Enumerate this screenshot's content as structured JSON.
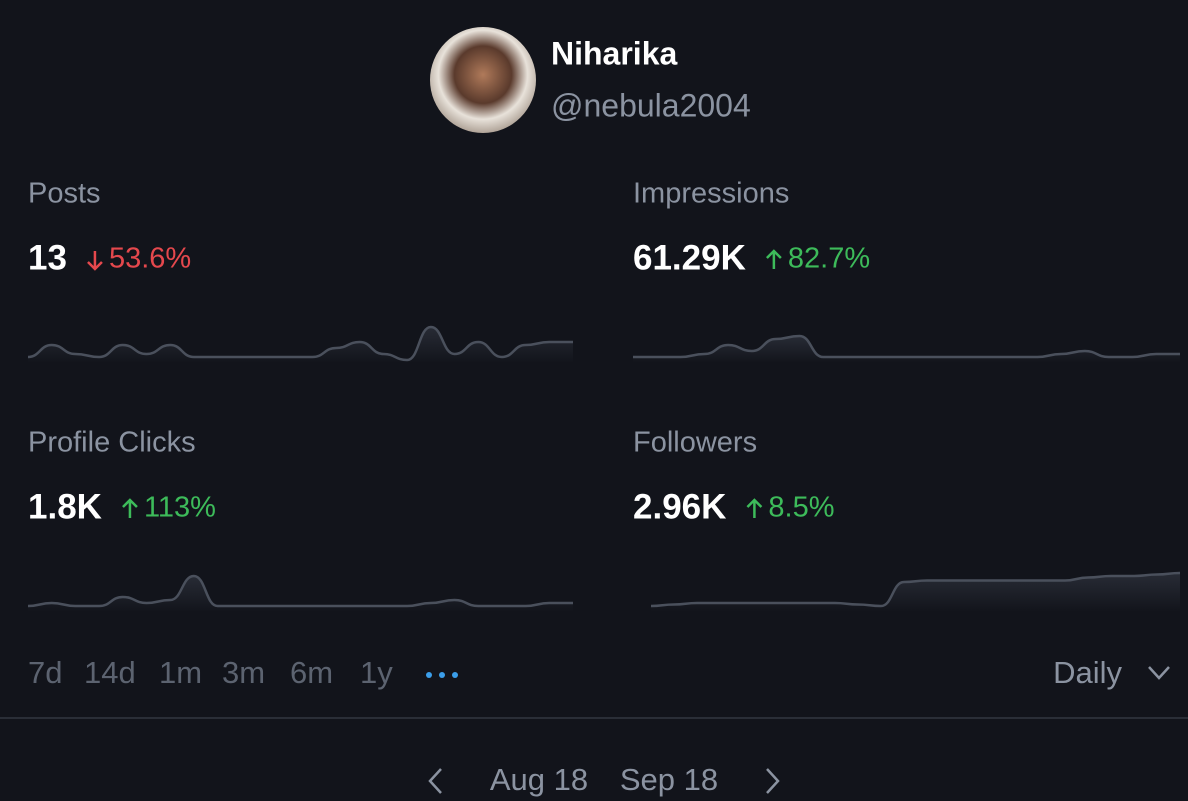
{
  "profile": {
    "name": "Niharika",
    "handle": "@nebula2004"
  },
  "metrics": [
    {
      "label": "Posts",
      "value": "13",
      "change": "53.6%",
      "trend": "down",
      "sparkline": [
        0,
        4,
        1,
        0,
        4,
        1,
        4,
        0,
        0,
        0,
        0,
        0,
        0,
        3,
        5,
        1,
        -1,
        10,
        1,
        5,
        0,
        4,
        5,
        5
      ]
    },
    {
      "label": "Impressions",
      "value": "61.29K",
      "change": "82.7%",
      "trend": "up",
      "sparkline": [
        0,
        0,
        0,
        1,
        4,
        2,
        6,
        7,
        0,
        0,
        0,
        0,
        0,
        0,
        0,
        0,
        0,
        0,
        1,
        2,
        0,
        0,
        1,
        1
      ]
    },
    {
      "label": "Profile Clicks",
      "value": "1.8K",
      "change": "113%",
      "trend": "up",
      "sparkline": [
        0,
        1,
        0,
        0,
        3,
        1,
        2,
        10,
        0,
        0,
        0,
        0,
        0,
        0,
        0,
        0,
        0,
        1,
        2,
        0,
        0,
        0,
        1,
        1
      ]
    },
    {
      "label": "Followers",
      "value": "2.96K",
      "change": "8.5%",
      "trend": "up",
      "sparkline": [
        0,
        0.5,
        1,
        1,
        1,
        1,
        1,
        1,
        1,
        0.5,
        0,
        8,
        8.5,
        8.5,
        8.5,
        8.5,
        8.5,
        8.5,
        8.5,
        9.5,
        10,
        10,
        10.5,
        11
      ]
    }
  ],
  "ranges": [
    "7d",
    "14d",
    "1m",
    "3m",
    "6m",
    "1y"
  ],
  "interval": "Daily",
  "period": {
    "start": "Aug 18",
    "end": "Sep 18"
  }
}
